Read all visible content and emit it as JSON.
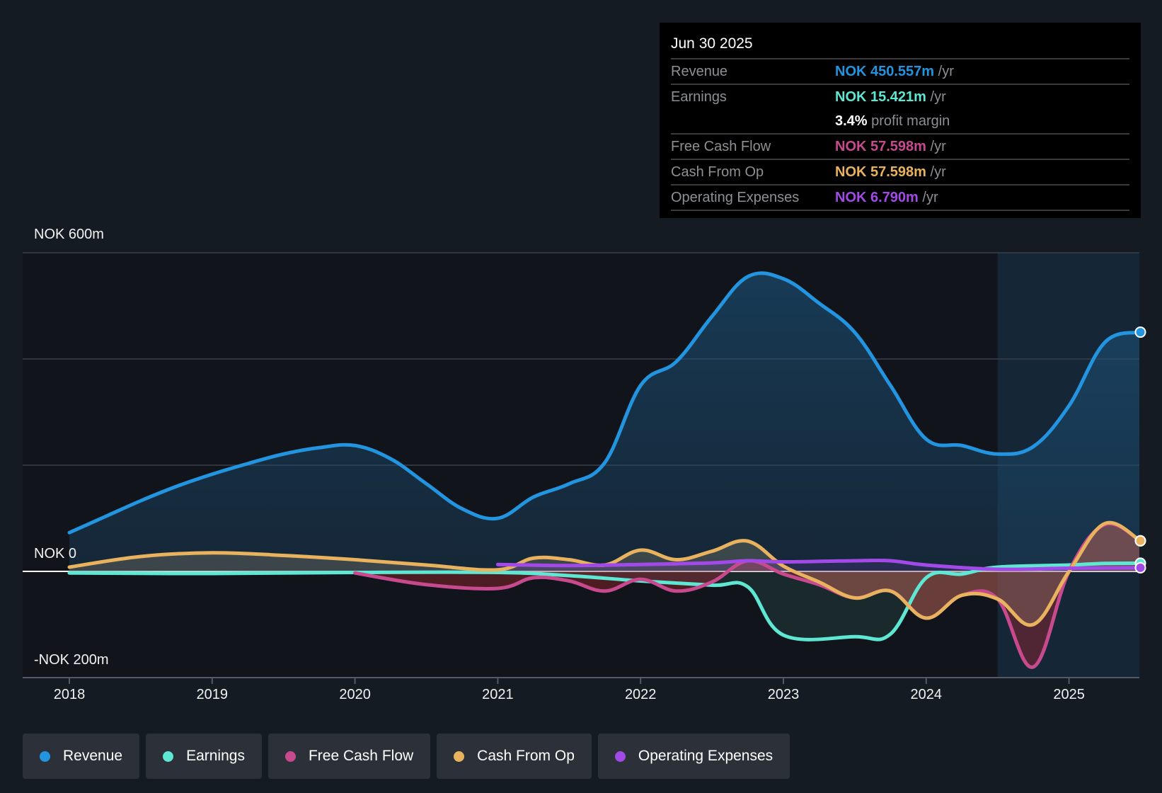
{
  "chart_data": {
    "type": "area",
    "title": "",
    "currency_unit": "NOK m",
    "y_axis_labels": [
      "NOK 600m",
      "NOK 0",
      "-NOK 200m"
    ],
    "ylim": [
      -200,
      600
    ],
    "gridlines": [
      600,
      400,
      200,
      0,
      -200
    ],
    "x_ticks": [
      "2018",
      "2019",
      "2020",
      "2021",
      "2022",
      "2023",
      "2024",
      "2025"
    ],
    "xlim": [
      2017.7,
      2025.5
    ],
    "highlight_region_start": 2024.5,
    "series": [
      {
        "name": "Revenue",
        "color": "#2394df",
        "x": [
          2018.0,
          2018.25,
          2018.5,
          2018.75,
          2019.0,
          2019.25,
          2019.5,
          2019.75,
          2020.0,
          2020.25,
          2020.5,
          2020.75,
          2021.0,
          2021.25,
          2021.5,
          2021.75,
          2022.0,
          2022.25,
          2022.5,
          2022.75,
          2023.0,
          2023.25,
          2023.5,
          2023.75,
          2024.0,
          2024.25,
          2024.5,
          2024.75,
          2025.0,
          2025.25,
          2025.5
        ],
        "values": [
          73,
          103,
          133,
          160,
          183,
          203,
          221,
          233,
          237,
          212,
          165,
          118,
          100,
          140,
          165,
          205,
          350,
          395,
          480,
          555,
          551,
          505,
          450,
          350,
          249,
          237,
          221,
          235,
          312,
          431,
          450.557
        ]
      },
      {
        "name": "Earnings",
        "color": "#5ee7d2",
        "x": [
          2018.0,
          2019.0,
          2020.0,
          2021.0,
          2021.5,
          2022.0,
          2022.5,
          2022.75,
          2023.0,
          2023.5,
          2023.75,
          2024.0,
          2024.25,
          2024.5,
          2025.0,
          2025.25,
          2025.5
        ],
        "values": [
          -3,
          -4,
          -2,
          -2,
          -8,
          -18,
          -26,
          -29,
          -120,
          -123,
          -118,
          -12,
          -5,
          8,
          12,
          15,
          15.421
        ]
      },
      {
        "name": "Free Cash Flow",
        "color": "#c84a8e",
        "x": [
          2020.0,
          2020.5,
          2021.0,
          2021.25,
          2021.5,
          2021.75,
          2022.0,
          2022.25,
          2022.5,
          2022.75,
          2023.0,
          2023.25,
          2023.5,
          2023.75,
          2024.0,
          2024.25,
          2024.5,
          2024.75,
          2025.0,
          2025.25,
          2025.5
        ],
        "values": [
          -3,
          -25,
          -32,
          -12,
          -18,
          -37,
          -15,
          -37,
          -20,
          20,
          -5,
          -25,
          -50,
          -37,
          -88,
          -45,
          -52,
          -180,
          0,
          88,
          57.598
        ]
      },
      {
        "name": "Cash From Op",
        "color": "#e8b25e",
        "x": [
          2018.0,
          2018.5,
          2019.0,
          2019.5,
          2020.0,
          2020.5,
          2021.0,
          2021.25,
          2021.5,
          2021.75,
          2022.0,
          2022.25,
          2022.5,
          2022.75,
          2023.0,
          2023.25,
          2023.5,
          2023.75,
          2024.0,
          2024.25,
          2024.5,
          2024.75,
          2025.0,
          2025.25,
          2025.5
        ],
        "values": [
          8,
          28,
          35,
          30,
          22,
          12,
          3,
          25,
          22,
          12,
          40,
          22,
          38,
          57,
          10,
          -20,
          -50,
          -37,
          -88,
          -45,
          -52,
          -100,
          0,
          90,
          57.598
        ]
      },
      {
        "name": "Operating Expenses",
        "color": "#a24ae8",
        "x": [
          2021.0,
          2021.5,
          2022.0,
          2022.5,
          2022.75,
          2023.0,
          2023.5,
          2023.75,
          2024.0,
          2024.5,
          2025.0,
          2025.5
        ],
        "values": [
          13,
          11,
          13,
          16,
          20,
          18,
          20,
          20,
          12,
          4,
          6,
          6.79
        ]
      }
    ]
  },
  "tooltip": {
    "date": "Jun 30 2025",
    "rows": [
      {
        "label": "Revenue",
        "value": "NOK 450.557m",
        "unit": "/yr",
        "color": "#2394df"
      },
      {
        "label": "Earnings",
        "value": "NOK 15.421m",
        "unit": "/yr",
        "color": "#5ee7d2"
      },
      {
        "label": "",
        "value": "3.4%",
        "unit": "profit margin",
        "color": "#ffffff"
      },
      {
        "label": "Free Cash Flow",
        "value": "NOK 57.598m",
        "unit": "/yr",
        "color": "#c84a8e"
      },
      {
        "label": "Cash From Op",
        "value": "NOK 57.598m",
        "unit": "/yr",
        "color": "#e8b25e"
      },
      {
        "label": "Operating Expenses",
        "value": "NOK 6.790m",
        "unit": "/yr",
        "color": "#a24ae8"
      }
    ]
  },
  "legend": [
    {
      "label": "Revenue",
      "color": "#2394df"
    },
    {
      "label": "Earnings",
      "color": "#5ee7d2"
    },
    {
      "label": "Free Cash Flow",
      "color": "#c84a8e"
    },
    {
      "label": "Cash From Op",
      "color": "#e8b25e"
    },
    {
      "label": "Operating Expenses",
      "color": "#a24ae8"
    }
  ]
}
